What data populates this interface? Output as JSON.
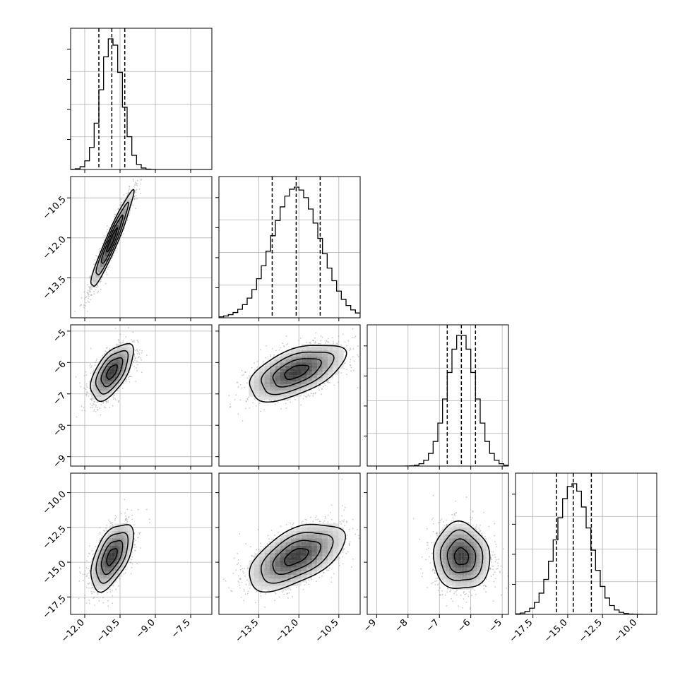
{
  "chart_data": {
    "type": "corner",
    "parameters": [
      {
        "range": [
          -12.6,
          -6.6
        ],
        "ticks": [
          -12.0,
          -10.5,
          -9.0,
          -7.5
        ],
        "tick_labels": [
          "−12.0",
          "−10.5",
          "−9.0",
          "−7.5"
        ],
        "center": -10.85,
        "sigma": 0.45,
        "quantiles": [
          -11.4,
          -10.85,
          -10.3
        ]
      },
      {
        "range": [
          -15.0,
          -9.7
        ],
        "ticks": [
          -13.5,
          -12.0,
          -10.5
        ],
        "tick_labels": [
          "−13.5",
          "−12.0",
          "−10.5"
        ],
        "center": -12.1,
        "sigma": 0.9,
        "quantiles": [
          -13.0,
          -12.1,
          -11.2
        ]
      },
      {
        "range": [
          -9.3,
          -4.8
        ],
        "ticks": [
          -9,
          -8,
          -7,
          -6,
          -5
        ],
        "tick_labels": [
          "−9",
          "−8",
          "−7",
          "−6",
          "−5"
        ],
        "center": -6.3,
        "sigma": 0.45,
        "quantiles": [
          -6.75,
          -6.3,
          -5.85
        ]
      },
      {
        "range": [
          -18.75,
          -8.6
        ],
        "ticks": [
          -17.5,
          -15.0,
          -12.5,
          -10.0
        ],
        "tick_labels": [
          "−17.5",
          "−15.0",
          "−12.5",
          "−10.0"
        ],
        "center": -14.6,
        "sigma": 1.2,
        "quantiles": [
          -15.8,
          -14.6,
          -13.3
        ]
      }
    ],
    "correlations": [
      [
        1.0,
        0.95,
        0.6,
        0.55
      ],
      [
        0.95,
        1.0,
        0.55,
        0.55
      ],
      [
        0.6,
        0.55,
        1.0,
        -0.05
      ],
      [
        0.55,
        0.55,
        -0.05,
        1.0
      ]
    ],
    "histogram_bins": 30,
    "contour_levels_sigma": [
      0.5,
      1.0,
      1.5,
      2.0
    ],
    "grid": true
  }
}
